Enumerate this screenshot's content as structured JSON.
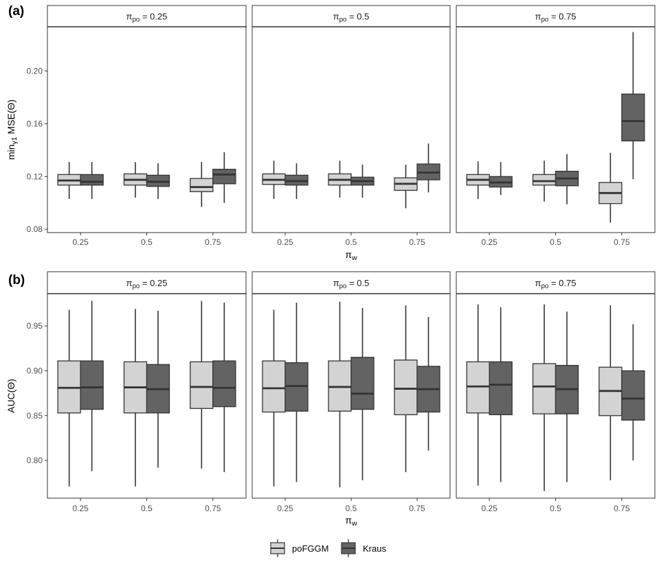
{
  "chart_data": [
    {
      "panel": "(a)",
      "type": "boxplot",
      "ylabel": "min_γ1 MSE(Θ)",
      "xlabel": "π_w",
      "ylim": [
        0.0775,
        0.2335
      ],
      "yticks": [
        "0.08",
        "0.12",
        "0.16",
        "0.20"
      ],
      "facets": [
        {
          "label": "π_po = 0.25",
          "categories": [
            "0.25",
            "0.5",
            "0.75"
          ],
          "series": [
            {
              "name": "poFGGM",
              "color": "#d3d3d3",
              "boxes": [
                {
                  "min": 0.103,
                  "q1": 0.1135,
                  "median": 0.117,
                  "q3": 0.1215,
                  "max": 0.131
                },
                {
                  "min": 0.104,
                  "q1": 0.1135,
                  "median": 0.1175,
                  "q3": 0.122,
                  "max": 0.131
                },
                {
                  "min": 0.097,
                  "q1": 0.1085,
                  "median": 0.112,
                  "q3": 0.1185,
                  "max": 0.131
                }
              ]
            },
            {
              "name": "Kraus",
              "color": "#636363",
              "boxes": [
                {
                  "min": 0.103,
                  "q1": 0.1135,
                  "median": 0.116,
                  "q3": 0.1215,
                  "max": 0.131
                },
                {
                  "min": 0.103,
                  "q1": 0.1125,
                  "median": 0.116,
                  "q3": 0.121,
                  "max": 0.13
                },
                {
                  "min": 0.1,
                  "q1": 0.1145,
                  "median": 0.1215,
                  "q3": 0.1255,
                  "max": 0.1385
                }
              ]
            }
          ]
        },
        {
          "label": "π_po = 0.5",
          "categories": [
            "0.25",
            "0.5",
            "0.75"
          ],
          "series": [
            {
              "name": "poFGGM",
              "color": "#d3d3d3",
              "boxes": [
                {
                  "min": 0.103,
                  "q1": 0.114,
                  "median": 0.1175,
                  "q3": 0.122,
                  "max": 0.132
                },
                {
                  "min": 0.104,
                  "q1": 0.1135,
                  "median": 0.1175,
                  "q3": 0.122,
                  "max": 0.132
                },
                {
                  "min": 0.096,
                  "q1": 0.1095,
                  "median": 0.1145,
                  "q3": 0.119,
                  "max": 0.129
                }
              ]
            },
            {
              "name": "Kraus",
              "color": "#636363",
              "boxes": [
                {
                  "min": 0.103,
                  "q1": 0.1135,
                  "median": 0.1165,
                  "q3": 0.121,
                  "max": 0.13
                },
                {
                  "min": 0.104,
                  "q1": 0.1135,
                  "median": 0.1165,
                  "q3": 0.1195,
                  "max": 0.129
                },
                {
                  "min": 0.108,
                  "q1": 0.1175,
                  "median": 0.123,
                  "q3": 0.1295,
                  "max": 0.145
                }
              ]
            }
          ]
        },
        {
          "label": "π_po = 0.75",
          "categories": [
            "0.25",
            "0.5",
            "0.75"
          ],
          "series": [
            {
              "name": "poFGGM",
              "color": "#d3d3d3",
              "boxes": [
                {
                  "min": 0.103,
                  "q1": 0.1135,
                  "median": 0.1175,
                  "q3": 0.1215,
                  "max": 0.1315
                },
                {
                  "min": 0.101,
                  "q1": 0.1135,
                  "median": 0.1165,
                  "q3": 0.1215,
                  "max": 0.132
                },
                {
                  "min": 0.085,
                  "q1": 0.0995,
                  "median": 0.1075,
                  "q3": 0.1155,
                  "max": 0.138
                }
              ]
            },
            {
              "name": "Kraus",
              "color": "#636363",
              "boxes": [
                {
                  "min": 0.106,
                  "q1": 0.112,
                  "median": 0.1155,
                  "q3": 0.12,
                  "max": 0.131
                },
                {
                  "min": 0.099,
                  "q1": 0.113,
                  "median": 0.1185,
                  "q3": 0.124,
                  "max": 0.137
                },
                {
                  "min": 0.118,
                  "q1": 0.147,
                  "median": 0.162,
                  "q3": 0.1825,
                  "max": 0.2295
                }
              ]
            }
          ]
        }
      ]
    },
    {
      "panel": "(b)",
      "type": "boxplot",
      "ylabel": "AUC(Θ)",
      "xlabel": "π_w",
      "ylim": [
        0.758,
        0.986
      ],
      "yticks": [
        "0.80",
        "0.85",
        "0.90",
        "0.95"
      ],
      "facets": [
        {
          "label": "π_po = 0.25",
          "categories": [
            "0.25",
            "0.5",
            "0.75"
          ],
          "series": [
            {
              "name": "poFGGM",
              "color": "#d3d3d3",
              "boxes": [
                {
                  "min": 0.771,
                  "q1": 0.853,
                  "median": 0.881,
                  "q3": 0.911,
                  "max": 0.968
                },
                {
                  "min": 0.771,
                  "q1": 0.853,
                  "median": 0.8815,
                  "q3": 0.91,
                  "max": 0.969
                },
                {
                  "min": 0.791,
                  "q1": 0.858,
                  "median": 0.882,
                  "q3": 0.91,
                  "max": 0.978
                }
              ]
            },
            {
              "name": "Kraus",
              "color": "#636363",
              "boxes": [
                {
                  "min": 0.788,
                  "q1": 0.857,
                  "median": 0.8815,
                  "q3": 0.911,
                  "max": 0.978
                },
                {
                  "min": 0.792,
                  "q1": 0.853,
                  "median": 0.8795,
                  "q3": 0.907,
                  "max": 0.967
                },
                {
                  "min": 0.787,
                  "q1": 0.86,
                  "median": 0.881,
                  "q3": 0.911,
                  "max": 0.976
                }
              ]
            }
          ]
        },
        {
          "label": "π_po = 0.5",
          "categories": [
            "0.25",
            "0.5",
            "0.75"
          ],
          "series": [
            {
              "name": "poFGGM",
              "color": "#d3d3d3",
              "boxes": [
                {
                  "min": 0.771,
                  "q1": 0.854,
                  "median": 0.8805,
                  "q3": 0.911,
                  "max": 0.968
                },
                {
                  "min": 0.77,
                  "q1": 0.855,
                  "median": 0.882,
                  "q3": 0.911,
                  "max": 0.977
                },
                {
                  "min": 0.787,
                  "q1": 0.851,
                  "median": 0.88,
                  "q3": 0.912,
                  "max": 0.973
                }
              ]
            },
            {
              "name": "Kraus",
              "color": "#636363",
              "boxes": [
                {
                  "min": 0.776,
                  "q1": 0.855,
                  "median": 0.883,
                  "q3": 0.909,
                  "max": 0.976
                },
                {
                  "min": 0.778,
                  "q1": 0.857,
                  "median": 0.8745,
                  "q3": 0.915,
                  "max": 0.97
                },
                {
                  "min": 0.811,
                  "q1": 0.854,
                  "median": 0.8795,
                  "q3": 0.905,
                  "max": 0.96
                }
              ]
            }
          ]
        },
        {
          "label": "π_po = 0.75",
          "categories": [
            "0.25",
            "0.5",
            "0.75"
          ],
          "series": [
            {
              "name": "poFGGM",
              "color": "#d3d3d3",
              "boxes": [
                {
                  "min": 0.772,
                  "q1": 0.853,
                  "median": 0.8825,
                  "q3": 0.91,
                  "max": 0.974
                },
                {
                  "min": 0.766,
                  "q1": 0.852,
                  "median": 0.8825,
                  "q3": 0.908,
                  "max": 0.974
                },
                {
                  "min": 0.778,
                  "q1": 0.85,
                  "median": 0.8775,
                  "q3": 0.904,
                  "max": 0.973
                }
              ]
            },
            {
              "name": "Kraus",
              "color": "#636363",
              "boxes": [
                {
                  "min": 0.776,
                  "q1": 0.851,
                  "median": 0.8845,
                  "q3": 0.91,
                  "max": 0.971
                },
                {
                  "min": 0.776,
                  "q1": 0.852,
                  "median": 0.8795,
                  "q3": 0.906,
                  "max": 0.966
                },
                {
                  "min": 0.8,
                  "q1": 0.845,
                  "median": 0.869,
                  "q3": 0.9,
                  "max": 0.952
                }
              ]
            }
          ]
        }
      ]
    }
  ],
  "legend": {
    "items": [
      {
        "name": "poFGGM",
        "color": "#d3d3d3"
      },
      {
        "name": "Kraus",
        "color": "#636363"
      }
    ]
  }
}
